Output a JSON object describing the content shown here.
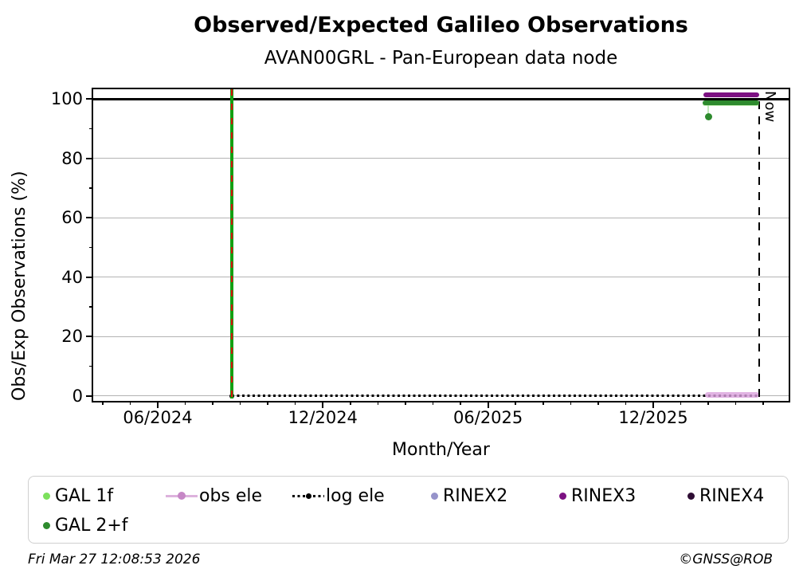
{
  "title": "Observed/Expected Galileo Observations",
  "subtitle": "AVAN00GRL - Pan-European data node",
  "footer": {
    "timestamp": "Fri Mar 27 12:08:53 2026",
    "credit": "©GNSS@ROB"
  },
  "chart_data": {
    "type": "line",
    "title": "Observed/Expected Galileo Observations",
    "subtitle": "AVAN00GRL - Pan-European data node",
    "xlabel": "Month/Year",
    "ylabel": "Obs/Exp Observations (%)",
    "xlim": [
      "2024-03-21",
      "2026-04-29"
    ],
    "ylim": [
      -1.7,
      103.3
    ],
    "grid": "horizontal-light-gray",
    "x_ticks": [
      {
        "date": "2024-06-01",
        "label": "06/2024"
      },
      {
        "date": "2024-12-01",
        "label": "12/2024"
      },
      {
        "date": "2025-06-01",
        "label": "06/2025"
      },
      {
        "date": "2025-12-01",
        "label": "12/2025"
      }
    ],
    "y_ticks": [
      {
        "value": 0,
        "label": "0"
      },
      {
        "value": 20,
        "label": "20"
      },
      {
        "value": 40,
        "label": "40"
      },
      {
        "value": 60,
        "label": "60"
      },
      {
        "value": 80,
        "label": "80"
      },
      {
        "value": 100,
        "label": "100"
      }
    ],
    "y_minor_ticks": [
      10,
      30,
      50,
      70,
      90
    ],
    "reference_value_line": 100,
    "annotations": {
      "event_line": {
        "date": "2024-08-22",
        "line_color": "#12a012",
        "dash_color": "#e01010"
      },
      "now_line": {
        "date": "2026-03-27",
        "label": "Now",
        "color": "#000000"
      }
    },
    "series": [
      {
        "name": "GAL 1f",
        "color": "#7ce05c",
        "style": "thick-line",
        "opacity": 0.45,
        "thickness": 5,
        "segments": [
          {
            "start": "2026-01-25",
            "end": "2026-03-27",
            "value": 98.2
          }
        ],
        "points": [],
        "connectors": []
      },
      {
        "name": "GAL 2+f",
        "color": "#2e8b2e",
        "style": "thick-line",
        "opacity": 1,
        "thickness": 6,
        "segments": [
          {
            "start": "2026-01-25",
            "end": "2026-03-27",
            "value": 98.8
          }
        ],
        "points": [
          {
            "date": "2026-02-01",
            "value": 94.0
          }
        ],
        "connectors": [
          {
            "date": "2026-02-01",
            "from": 98.8,
            "to": 94.0,
            "color": "#aadf9e"
          }
        ]
      },
      {
        "name": "obs ele",
        "color": "#d9a0dc",
        "style": "thick-line",
        "opacity": 0.8,
        "thickness": 7,
        "segments": [
          {
            "start": "2026-01-28",
            "end": "2026-03-27",
            "value": 0.4
          }
        ],
        "points": [],
        "connectors": []
      },
      {
        "name": "log ele",
        "color": "#000000",
        "style": "dotted",
        "opacity": 1,
        "thickness": 3,
        "segments": [
          {
            "start": "2024-08-22",
            "end": "2026-03-27",
            "value": 0.0
          }
        ],
        "points": [
          {
            "date": "2024-08-22",
            "value": 0.0
          }
        ],
        "connectors": []
      },
      {
        "name": "RINEX2",
        "color": "#9693ca",
        "style": "thick-line",
        "opacity": 1,
        "thickness": 5,
        "segments": [],
        "points": [],
        "connectors": []
      },
      {
        "name": "RINEX3",
        "color": "#7c1182",
        "style": "thick-line",
        "opacity": 1,
        "thickness": 6,
        "segments": [
          {
            "start": "2026-01-26",
            "end": "2026-03-27",
            "value": 101.5
          }
        ],
        "points": [],
        "connectors": []
      },
      {
        "name": "RINEX4",
        "color": "#2e0d34",
        "style": "thick-line",
        "opacity": 1,
        "thickness": 5,
        "segments": [],
        "points": [],
        "connectors": []
      }
    ]
  },
  "legend": {
    "items": [
      {
        "label": "GAL 1f",
        "marker": "dot",
        "color": "#7ce05c",
        "dot_color": "#7ce05c",
        "row": 1
      },
      {
        "label": "obs ele",
        "marker": "line-dot",
        "color": "#ddb2dd",
        "dot_color": "#c687c6",
        "row": 1
      },
      {
        "label": "log ele",
        "marker": "dotted-line-dot",
        "color": "#000000",
        "dot_color": "#000000",
        "row": 1
      },
      {
        "label": "RINEX2",
        "marker": "dot",
        "color": "#9693ca",
        "dot_color": "#9693ca",
        "row": 1
      },
      {
        "label": "RINEX3",
        "marker": "dot",
        "color": "#7c1182",
        "dot_color": "#7c1182",
        "row": 1
      },
      {
        "label": "RINEX4",
        "marker": "dot",
        "color": "#2e0d34",
        "dot_color": "#2e0d34",
        "row": 1
      },
      {
        "label": "GAL 2+f",
        "marker": "dot",
        "color": "#2e8b2e",
        "dot_color": "#2e8b2e",
        "row": 2
      }
    ]
  }
}
